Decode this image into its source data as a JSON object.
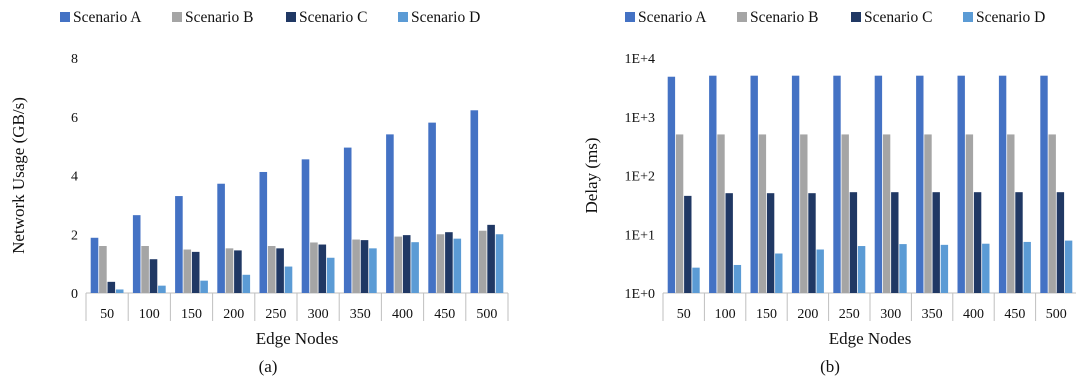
{
  "chart_data": [
    {
      "type": "bar",
      "caption": "(a)",
      "xlabel": "Edge Nodes",
      "ylabel": "Network Usage (GB/s)",
      "ylim": [
        0,
        8
      ],
      "yticks": [
        0,
        2,
        4,
        6,
        8
      ],
      "ytick_labels": [
        "0",
        "2",
        "4",
        "6",
        "8"
      ],
      "yscale": "linear",
      "grid": false,
      "legend": "top",
      "categories": [
        "50",
        "100",
        "150",
        "200",
        "250",
        "300",
        "350",
        "400",
        "450",
        "500"
      ],
      "series": [
        {
          "name": "Scenario A",
          "color": "#4472C4",
          "values": [
            1.88,
            2.65,
            3.3,
            3.72,
            4.12,
            4.55,
            4.95,
            5.4,
            5.8,
            6.22
          ]
        },
        {
          "name": "Scenario B",
          "color": "#A5A5A5",
          "values": [
            1.6,
            1.6,
            1.48,
            1.52,
            1.6,
            1.72,
            1.82,
            1.92,
            2.0,
            2.12
          ]
        },
        {
          "name": "Scenario C",
          "color": "#203864",
          "values": [
            0.38,
            1.15,
            1.4,
            1.45,
            1.52,
            1.65,
            1.8,
            1.97,
            2.07,
            2.32
          ]
        },
        {
          "name": "Scenario D",
          "color": "#5B9BD5",
          "values": [
            0.12,
            0.25,
            0.42,
            0.62,
            0.9,
            1.2,
            1.52,
            1.73,
            1.85,
            2.0
          ]
        }
      ]
    },
    {
      "type": "bar",
      "caption": "(b)",
      "xlabel": "Edge Nodes",
      "ylabel": "Delay (ms)",
      "ylim": [
        1,
        10000
      ],
      "yticks": [
        1,
        10,
        100,
        1000,
        10000
      ],
      "ytick_labels": [
        "1E+0",
        "1E+1",
        "1E+2",
        "1E+3",
        "1E+4"
      ],
      "yscale": "log",
      "grid": false,
      "legend": "top",
      "categories": [
        "50",
        "100",
        "150",
        "200",
        "250",
        "300",
        "350",
        "400",
        "450",
        "500"
      ],
      "series": [
        {
          "name": "Scenario A",
          "color": "#4472C4",
          "values": [
            4800,
            5000,
            5000,
            5000,
            5000,
            5000,
            5000,
            5000,
            5000,
            5000
          ]
        },
        {
          "name": "Scenario B",
          "color": "#A5A5A5",
          "values": [
            500,
            500,
            500,
            500,
            500,
            500,
            500,
            500,
            500,
            500
          ]
        },
        {
          "name": "Scenario C",
          "color": "#203864",
          "values": [
            45,
            50,
            50,
            50,
            52,
            52,
            52,
            52,
            52,
            52
          ]
        },
        {
          "name": "Scenario D",
          "color": "#5B9BD5",
          "values": [
            2.7,
            3.0,
            4.7,
            5.5,
            6.3,
            6.8,
            6.6,
            6.9,
            7.4,
            7.8
          ]
        }
      ]
    }
  ]
}
